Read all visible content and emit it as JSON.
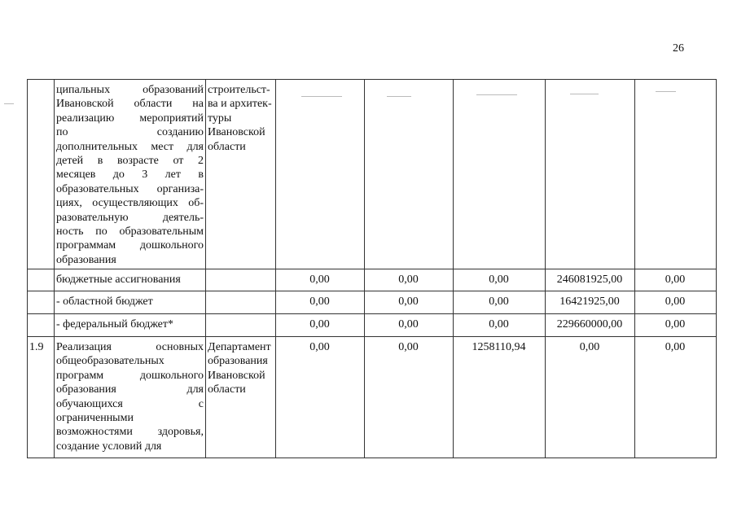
{
  "page_number": "26",
  "rows": [
    {
      "num": "",
      "description_lines": [
        "ципальных образований",
        "Ивановской области на",
        "реализацию мероприятий",
        "по созданию",
        "дополнительных мест для",
        "детей в возрасте от 2",
        "месяцев до 3 лет в",
        "образовательных организа-",
        "циях, осуществляющих об-",
        "разовательную деятель-",
        "ность по образовательным",
        "программам дошкольного",
        "образования"
      ],
      "executor_lines": [
        "строительст-",
        "ва и архитек-",
        "туры",
        "Ивановской",
        "области"
      ],
      "values": [
        "",
        "",
        "",
        "",
        ""
      ]
    },
    {
      "num": "",
      "description_lines": [
        "бюджетные ассигнования"
      ],
      "executor_lines": [],
      "values": [
        "0,00",
        "0,00",
        "0,00",
        "246081925,00",
        "0,00"
      ]
    },
    {
      "num": "",
      "description_lines": [
        "- областной бюджет"
      ],
      "executor_lines": [],
      "values": [
        "0,00",
        "0,00",
        "0,00",
        "16421925,00",
        "0,00"
      ]
    },
    {
      "num": "",
      "description_lines": [
        "- федеральный бюджет*"
      ],
      "executor_lines": [],
      "values": [
        "0,00",
        "0,00",
        "0,00",
        "229660000,00",
        "0,00"
      ]
    },
    {
      "num": "1.9",
      "description_lines": [
        "Реализация основных",
        "общеобразовательных",
        "программ дошкольного",
        "образования для",
        "обучающихся с",
        "ограниченными",
        "возможностями здоровья,",
        "создание условий для"
      ],
      "executor_lines": [
        "Департамент",
        "образования",
        "Ивановской",
        "области"
      ],
      "values": [
        "0,00",
        "0,00",
        "1258110,94",
        "0,00",
        "0,00"
      ]
    }
  ]
}
